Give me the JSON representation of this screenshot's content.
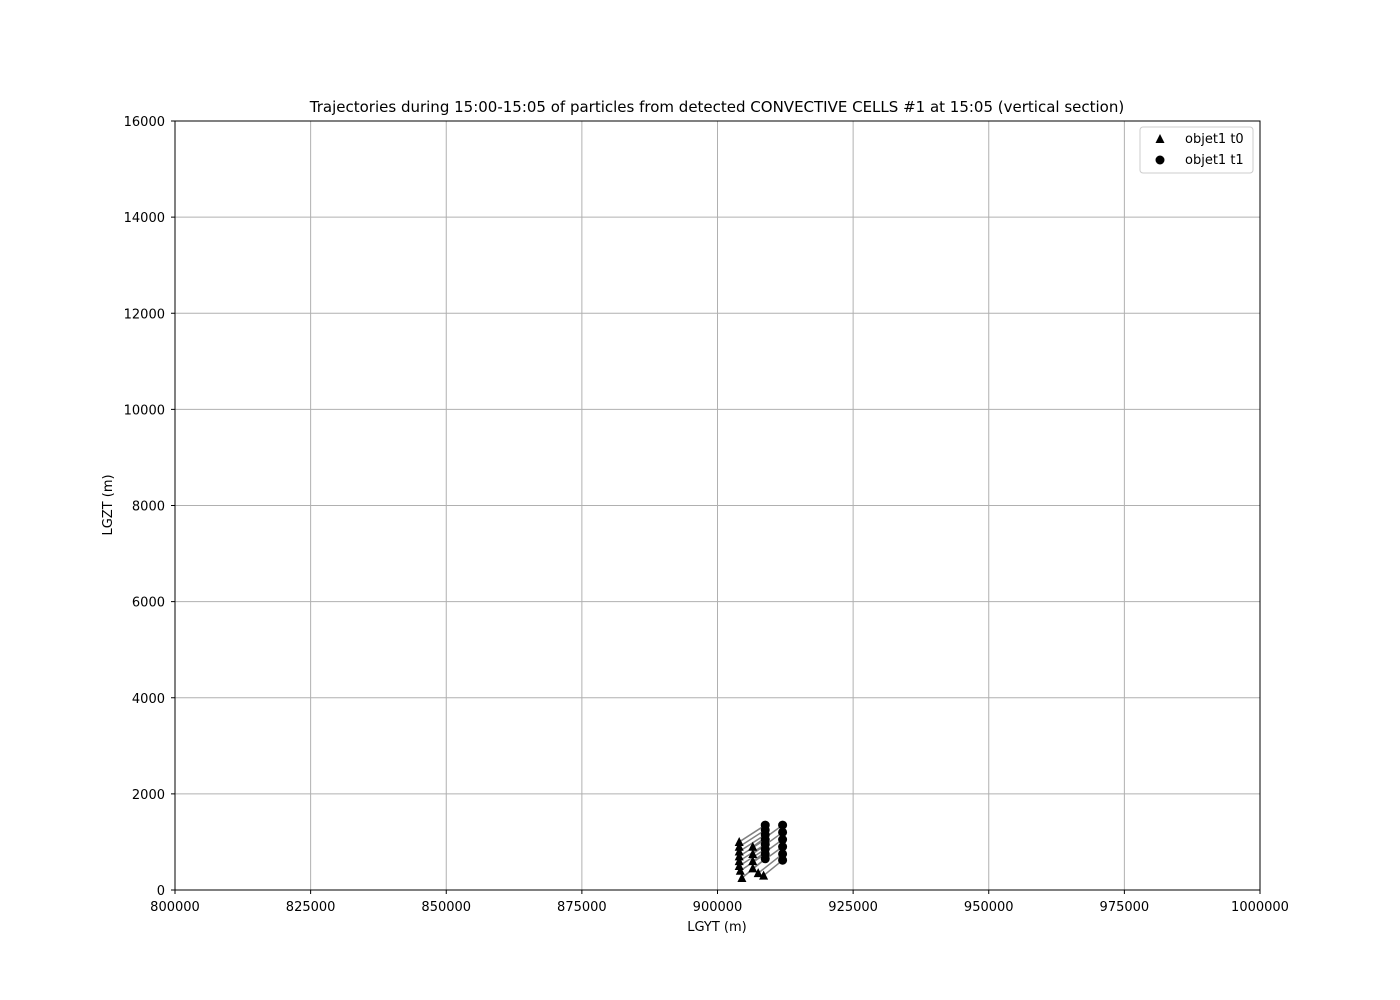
{
  "chart_data": {
    "type": "scatter",
    "title": "Trajectories during 15:00-15:05 of particles from detected CONVECTIVE CELLS #1 at 15:05 (vertical section)",
    "xlabel": "LGYT (m)",
    "ylabel": "LGZT (m)",
    "xlim": [
      800000,
      1000000
    ],
    "ylim": [
      0,
      16000
    ],
    "xticks": [
      800000,
      825000,
      850000,
      875000,
      900000,
      925000,
      950000,
      975000,
      1000000
    ],
    "yticks": [
      0,
      2000,
      4000,
      6000,
      8000,
      10000,
      12000,
      14000,
      16000
    ],
    "grid": true,
    "legend_position": "top-right",
    "series": [
      {
        "name": "objet1 t0",
        "marker": "triangle",
        "color": "#000000",
        "x": [
          904000,
          904000,
          904000,
          904000,
          904000,
          904000,
          904200,
          904500,
          906500,
          906500,
          906500,
          906500,
          907500,
          908500
        ],
        "y": [
          1000,
          900,
          800,
          700,
          600,
          500,
          400,
          250,
          900,
          750,
          600,
          450,
          350,
          300
        ]
      },
      {
        "name": "objet1 t1",
        "marker": "circle",
        "color": "#000000",
        "x": [
          908800,
          908800,
          908800,
          908800,
          908800,
          908800,
          908800,
          908800,
          912000,
          912000,
          912000,
          912000,
          912000,
          912000
        ],
        "y": [
          1350,
          1250,
          1150,
          1050,
          950,
          850,
          750,
          650,
          1350,
          1200,
          1050,
          900,
          750,
          620
        ]
      }
    ],
    "trajectory_line_color": "#808080"
  }
}
